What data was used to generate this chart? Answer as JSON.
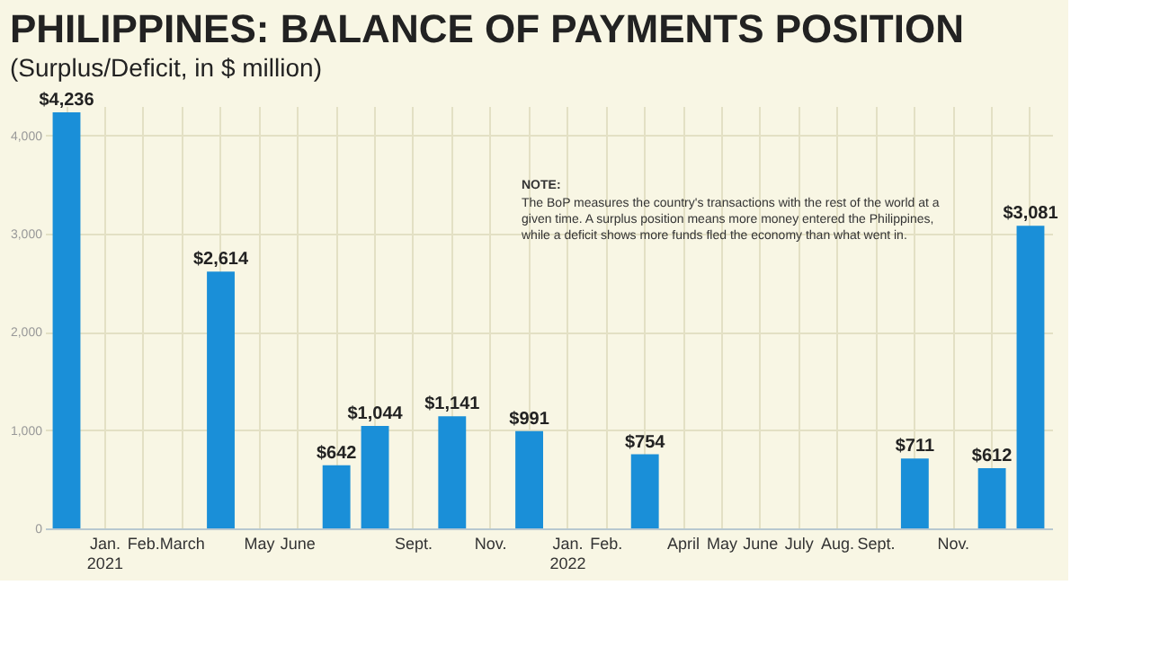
{
  "chart_data": {
    "type": "bar",
    "title": "PHILIPPINES: BALANCE OF PAYMENTS POSITION",
    "subtitle": "(Surplus/Deficit, in $ million)",
    "categories": [
      null,
      "Jan.\n2021",
      "Feb.",
      "March",
      null,
      "May",
      "June",
      null,
      null,
      "Sept.",
      null,
      "Nov.",
      null,
      "Jan.\n2022",
      "Feb.",
      null,
      "April",
      "May",
      "June",
      "July",
      "Aug.",
      "Sept.",
      null,
      "Nov.",
      null,
      null
    ],
    "values": [
      4236,
      null,
      null,
      null,
      2614,
      null,
      null,
      642,
      1044,
      null,
      1141,
      null,
      991,
      null,
      null,
      754,
      null,
      null,
      null,
      null,
      null,
      null,
      711,
      null,
      612,
      3081
    ],
    "value_labels": [
      "$4,236",
      null,
      null,
      null,
      "$2,614",
      null,
      null,
      "$642",
      "$1,044",
      null,
      "$1,141",
      null,
      "$991",
      null,
      null,
      "$754",
      null,
      null,
      null,
      null,
      null,
      null,
      "$711",
      null,
      "$612",
      "$3,081"
    ],
    "color": "#1a8fd8",
    "ylim": [
      0,
      4300
    ],
    "yticks": [
      0,
      {
        "value": 1000,
        "label": "1,000"
      },
      {
        "value": 2000,
        "label": "2,000"
      },
      {
        "value": 3000,
        "label": "3,000"
      },
      {
        "value": 4000,
        "label": "4,000"
      }
    ],
    "grid": true,
    "annotations": [
      "NOTE:",
      "The BoP measures the country's transactions with the rest of the world at a\ngiven time. A surplus position means more money entered the Philippines,\nwhile a deficit shows more funds fled the economy than what went in."
    ]
  }
}
